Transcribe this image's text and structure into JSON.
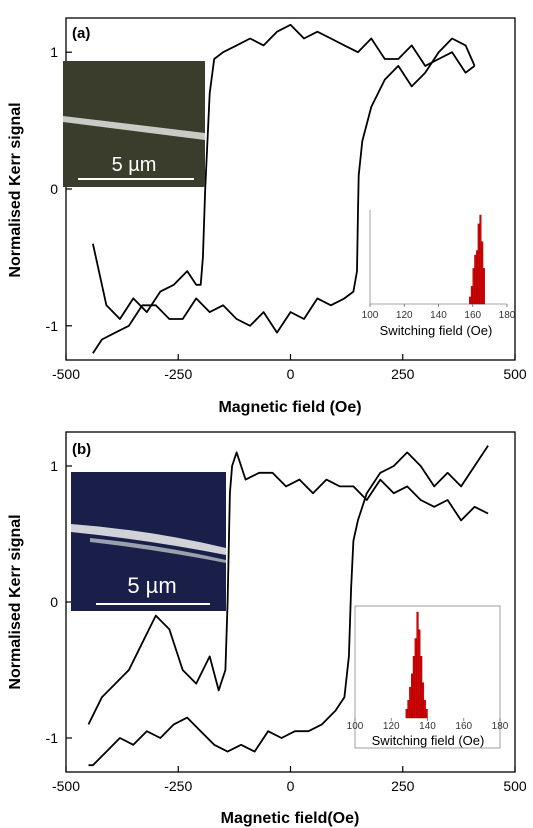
{
  "chart_data": [
    {
      "type": "line",
      "panel_label": "(a)",
      "xlabel": "Magnetic field (Oe)",
      "ylabel": "Normalised Kerr signal",
      "xlim": [
        -500,
        500
      ],
      "ylim": [
        -1.25,
        1.25
      ],
      "xticks": [
        -500,
        -250,
        0,
        250,
        500
      ],
      "xtick_labels": [
        "-500",
        "-250",
        "0",
        "250",
        "500"
      ],
      "yticks": [
        -1,
        0,
        1
      ],
      "ytick_labels": [
        "-1",
        "0",
        "1"
      ],
      "switch_up_field": -195,
      "switch_down_field": 150,
      "series": [
        {
          "x": [
            -440,
            -410,
            -380,
            -350,
            -320,
            -290,
            -260,
            -230,
            -210,
            -200,
            -195,
            -190,
            -180,
            -170,
            -150,
            -120,
            -90,
            -60,
            -30,
            0,
            30,
            60,
            90,
            120,
            150,
            180,
            210,
            240,
            270,
            300,
            330,
            360,
            390,
            410
          ],
          "y": [
            -0.4,
            -0.85,
            -0.95,
            -0.8,
            -0.9,
            -0.75,
            -0.7,
            -0.6,
            -0.7,
            -0.7,
            -0.5,
            0.0,
            0.7,
            0.95,
            1.0,
            1.05,
            1.1,
            1.05,
            1.15,
            1.2,
            1.1,
            1.15,
            1.1,
            1.05,
            1.0,
            1.1,
            0.95,
            0.95,
            1.05,
            0.9,
            0.95,
            1.0,
            0.85,
            0.9
          ]
        },
        {
          "x": [
            410,
            390,
            360,
            330,
            300,
            270,
            240,
            210,
            180,
            160,
            152,
            150,
            148,
            140,
            120,
            90,
            60,
            30,
            0,
            -30,
            -60,
            -90,
            -120,
            -150,
            -180,
            -210,
            -240,
            -270,
            -300,
            -330,
            -360,
            -390,
            -420,
            -440
          ],
          "y": [
            0.9,
            1.05,
            1.1,
            1.0,
            0.85,
            0.75,
            0.9,
            0.8,
            0.6,
            0.35,
            0.1,
            -0.2,
            -0.6,
            -0.75,
            -0.8,
            -0.85,
            -0.8,
            -0.95,
            -0.9,
            -1.05,
            -0.9,
            -1.0,
            -0.95,
            -0.85,
            -0.9,
            -0.8,
            -0.95,
            -0.95,
            -0.85,
            -0.85,
            -1.0,
            -1.05,
            -1.1,
            -1.2
          ]
        }
      ],
      "inset_image": {
        "scale_label": "5 µm",
        "background_color": "#3a3d2c",
        "wire_color": "#c9ccc4"
      },
      "inset_histogram": {
        "type": "bar",
        "xlabel": "Switching field (Oe)",
        "xlim": [
          100,
          180
        ],
        "xticks": [
          100,
          120,
          140,
          160,
          180
        ],
        "xtick_labels": [
          "100",
          "120",
          "140",
          "160",
          "180"
        ],
        "bin_width": 1,
        "bins": [
          158,
          159,
          160,
          161,
          162,
          163,
          164,
          165,
          166
        ],
        "counts": [
          0.8,
          2,
          4,
          5.5,
          6,
          9,
          10,
          7,
          4
        ],
        "bar_color": "#e00000"
      }
    },
    {
      "type": "line",
      "panel_label": "(b)",
      "xlabel": "Magnetic field(Oe)",
      "ylabel": "Normalised Kerr signal",
      "xlim": [
        -500,
        500
      ],
      "ylim": [
        -1.25,
        1.25
      ],
      "xticks": [
        -500,
        -250,
        0,
        250,
        500
      ],
      "xtick_labels": [
        "-500",
        "-250",
        "0",
        "250",
        "500"
      ],
      "yticks": [
        -1,
        0,
        1
      ],
      "ytick_labels": [
        "-1",
        "0",
        "1"
      ],
      "switch_up_field": -135,
      "switch_down_field": 135,
      "series": [
        {
          "x": [
            -450,
            -420,
            -390,
            -360,
            -330,
            -300,
            -270,
            -240,
            -210,
            -180,
            -160,
            -145,
            -140,
            -135,
            -130,
            -120,
            -100,
            -70,
            -40,
            -10,
            20,
            50,
            80,
            110,
            140,
            170,
            200,
            230,
            260,
            290,
            320,
            350,
            380,
            410,
            440
          ],
          "y": [
            -0.9,
            -0.7,
            -0.6,
            -0.5,
            -0.3,
            -0.1,
            -0.2,
            -0.5,
            -0.6,
            -0.4,
            -0.65,
            -0.5,
            0.0,
            0.8,
            1.0,
            1.1,
            0.9,
            0.95,
            0.95,
            0.85,
            0.9,
            0.8,
            0.9,
            0.85,
            0.85,
            0.75,
            0.9,
            0.8,
            0.85,
            0.75,
            0.7,
            0.75,
            0.6,
            0.7,
            0.65
          ]
        },
        {
          "x": [
            440,
            410,
            380,
            350,
            320,
            290,
            260,
            230,
            200,
            170,
            150,
            140,
            135,
            130,
            120,
            100,
            70,
            40,
            10,
            -20,
            -50,
            -80,
            -110,
            -140,
            -170,
            -200,
            -230,
            -260,
            -290,
            -320,
            -350,
            -380,
            -410,
            -440,
            -450
          ],
          "y": [
            1.15,
            1.0,
            0.85,
            0.95,
            0.85,
            1.0,
            1.1,
            1.0,
            0.95,
            0.8,
            0.6,
            0.45,
            0.1,
            -0.4,
            -0.7,
            -0.8,
            -0.9,
            -0.95,
            -0.95,
            -1.0,
            -0.95,
            -1.1,
            -1.05,
            -1.1,
            -1.05,
            -0.95,
            -0.85,
            -0.9,
            -1.0,
            -0.95,
            -1.05,
            -1.0,
            -1.1,
            -1.2,
            -1.2
          ]
        }
      ],
      "inset_image": {
        "scale_label": "5 µm",
        "background_color": "#1a1f4a",
        "wire_color": "#d0d2d8"
      },
      "inset_histogram": {
        "type": "bar",
        "xlabel": "Switching field (Oe)",
        "xlim": [
          100,
          180
        ],
        "xticks": [
          100,
          120,
          140,
          160,
          180
        ],
        "xtick_labels": [
          "100",
          "120",
          "140",
          "160",
          "180"
        ],
        "bin_width": 1,
        "bins": [
          128,
          129,
          130,
          131,
          132,
          133,
          134,
          135,
          136,
          137,
          138,
          139
        ],
        "counts": [
          1,
          2,
          3.5,
          5,
          7,
          9,
          12,
          10,
          7,
          4,
          2,
          1
        ],
        "bar_color": "#e00000"
      }
    }
  ]
}
